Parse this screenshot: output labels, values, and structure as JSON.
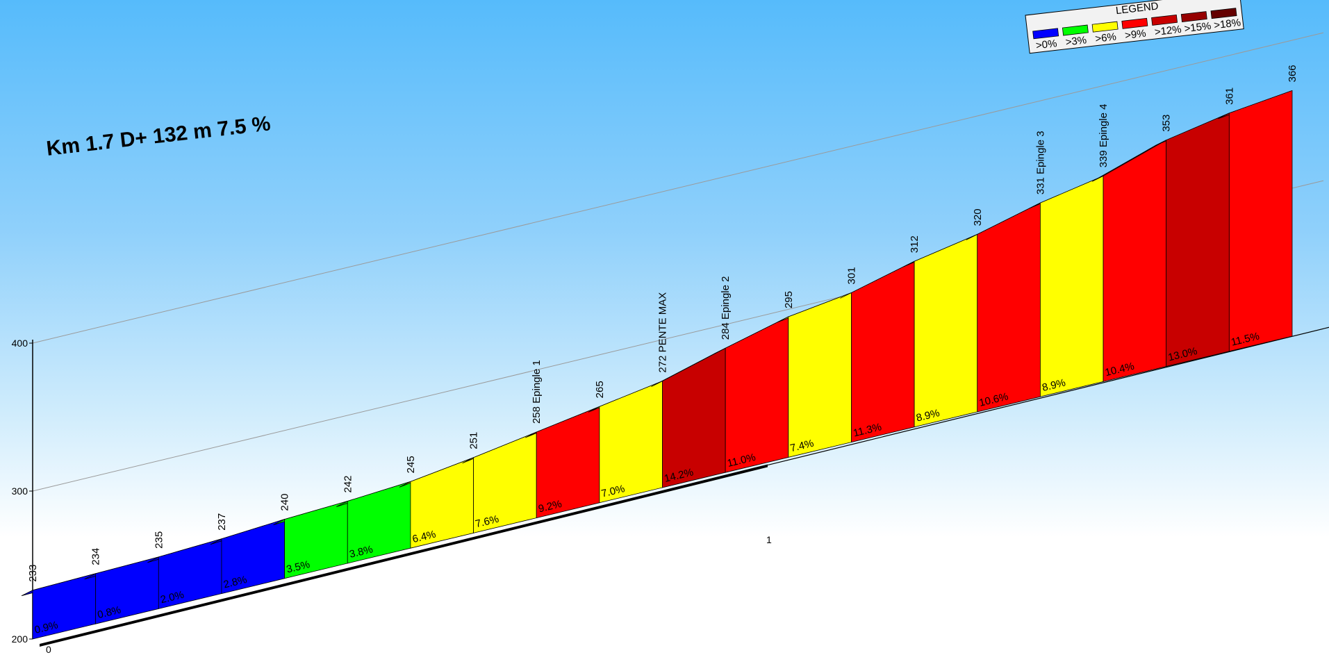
{
  "chart_data": {
    "type": "area",
    "title": "Km 1.7 D+ 132 m 7.5 %",
    "y_ticks": [
      "200",
      "300",
      "400"
    ],
    "ylim": [
      200,
      400
    ],
    "x_tick_labels": [
      "0",
      "1"
    ],
    "legend": {
      "title": "LEGEND",
      "placement": "top-right",
      "entries": [
        {
          "label": ">0%",
          "color": "#0000ff"
        },
        {
          "label": ">3%",
          "color": "#00ff00"
        },
        {
          "label": ">6%",
          "color": "#ffff00"
        },
        {
          "label": ">9%",
          "color": "#ff0000"
        },
        {
          "label": ">12%",
          "color": "#c80000"
        },
        {
          "label": ">15%",
          "color": "#960000"
        },
        {
          "label": ">18%",
          "color": "#640000"
        }
      ]
    },
    "points": [
      {
        "altitude": 233,
        "label": "233"
      },
      {
        "altitude": 234,
        "label": "234"
      },
      {
        "altitude": 235,
        "label": "235"
      },
      {
        "altitude": 237,
        "label": "237"
      },
      {
        "altitude": 240,
        "label": "240"
      },
      {
        "altitude": 242,
        "label": "242"
      },
      {
        "altitude": 245,
        "label": "245"
      },
      {
        "altitude": 251,
        "label": "251"
      },
      {
        "altitude": 258,
        "label": "258 Epingle 1"
      },
      {
        "altitude": 265,
        "label": "265"
      },
      {
        "altitude": 272,
        "label": "272 PENTE MAX"
      },
      {
        "altitude": 284,
        "label": "284 Epingle 2"
      },
      {
        "altitude": 295,
        "label": "295"
      },
      {
        "altitude": 301,
        "label": "301"
      },
      {
        "altitude": 312,
        "label": "312"
      },
      {
        "altitude": 320,
        "label": "320"
      },
      {
        "altitude": 331,
        "label": "331 Epingle 3"
      },
      {
        "altitude": 339,
        "label": "339 Epingle 4"
      },
      {
        "altitude": 353,
        "label": "353"
      },
      {
        "altitude": 361,
        "label": "361"
      },
      {
        "altitude": 366,
        "label": "366"
      }
    ],
    "segments": [
      {
        "gradient": "0.9%",
        "color": "#0000ff"
      },
      {
        "gradient": "0.8%",
        "color": "#0000ff"
      },
      {
        "gradient": "2.0%",
        "color": "#0000ff"
      },
      {
        "gradient": "2.8%",
        "color": "#0000ff"
      },
      {
        "gradient": "3.5%",
        "color": "#00ff00"
      },
      {
        "gradient": "3.8%",
        "color": "#00ff00"
      },
      {
        "gradient": "6.4%",
        "color": "#ffff00"
      },
      {
        "gradient": "7.6%",
        "color": "#ffff00"
      },
      {
        "gradient": "9.2%",
        "color": "#ff0000"
      },
      {
        "gradient": "7.0%",
        "color": "#ffff00"
      },
      {
        "gradient": "14.2%",
        "color": "#c80000"
      },
      {
        "gradient": "11.0%",
        "color": "#ff0000"
      },
      {
        "gradient": "7.4%",
        "color": "#ffff00"
      },
      {
        "gradient": "11.3%",
        "color": "#ff0000"
      },
      {
        "gradient": "8.9%",
        "color": "#ffff00"
      },
      {
        "gradient": "10.6%",
        "color": "#ff0000"
      },
      {
        "gradient": "8.9%",
        "color": "#ffff00"
      },
      {
        "gradient": "10.4%",
        "color": "#ff0000"
      },
      {
        "gradient": "13.0%",
        "color": "#c80000"
      },
      {
        "gradient": "11.5%",
        "color": "#ff0000"
      }
    ]
  }
}
